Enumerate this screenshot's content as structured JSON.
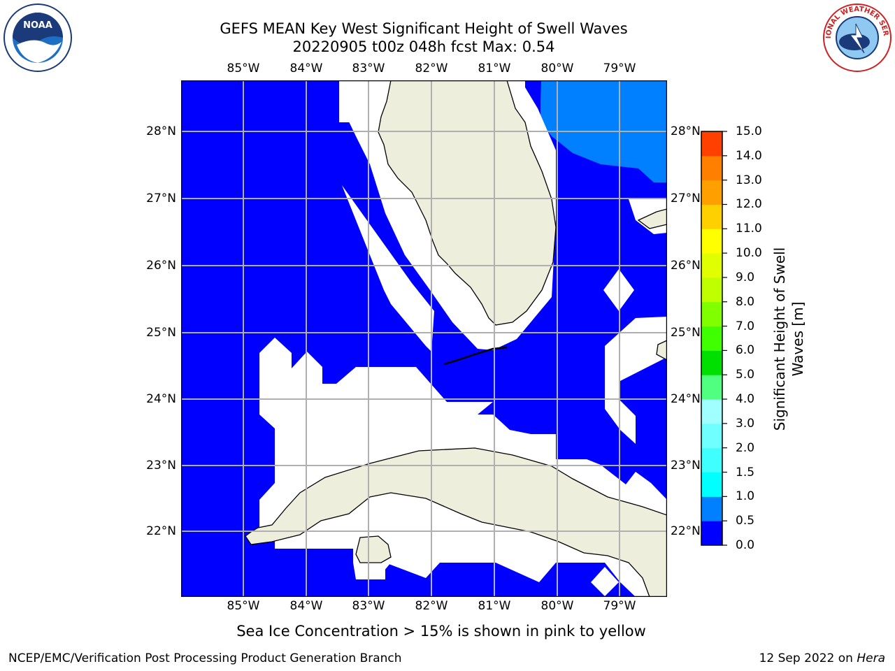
{
  "title": {
    "line1": "GEFS MEAN Key West Significant Height of Swell Waves",
    "line2": "20220905 t00z 048h fcst   Max: 0.54"
  },
  "logos": {
    "left": {
      "icon": "noaa-logo",
      "text": "NOAA"
    },
    "right": {
      "icon": "nws-logo",
      "text": "NATIONAL WEATHER SERVICE"
    }
  },
  "map": {
    "lon_ticks": [
      "85°W",
      "84°W",
      "83°W",
      "82°W",
      "81°W",
      "80°W",
      "79°W"
    ],
    "lat_ticks": [
      "28°N",
      "27°N",
      "26°N",
      "25°N",
      "24°N",
      "23°N",
      "22°N"
    ],
    "colors": {
      "water_low": "#0000ff",
      "water_mid": "#0080ff",
      "land": "#eeeedd",
      "masked": "#ffffff",
      "grid": "#b0b0b0"
    }
  },
  "colorbar": {
    "label": "Significant Height of Swell Waves [m]",
    "ticks": [
      "0.0",
      "0.5",
      "1.0",
      "1.5",
      "2.0",
      "3.0",
      "4.0",
      "5.0",
      "6.0",
      "7.0",
      "8.0",
      "9.0",
      "10.0",
      "11.0",
      "12.0",
      "13.0",
      "14.0",
      "15.0"
    ],
    "colors": [
      "#0000ff",
      "#0080ff",
      "#00ffff",
      "#40ffff",
      "#70ffff",
      "#a0ffff",
      "#50ff80",
      "#00e000",
      "#40ff00",
      "#80ff00",
      "#c0ff00",
      "#e0ff00",
      "#ffff00",
      "#ffd000",
      "#ffa000",
      "#ff8000",
      "#ff4000",
      "#ff0000"
    ]
  },
  "footnote": "Sea Ice Concentration > 15% is shown in pink to yellow",
  "credits": {
    "left": "NCEP/EMC/Verification Post Processing Product Generation Branch",
    "right_date": "12 Sep 2022 on",
    "right_host": "Hera"
  }
}
